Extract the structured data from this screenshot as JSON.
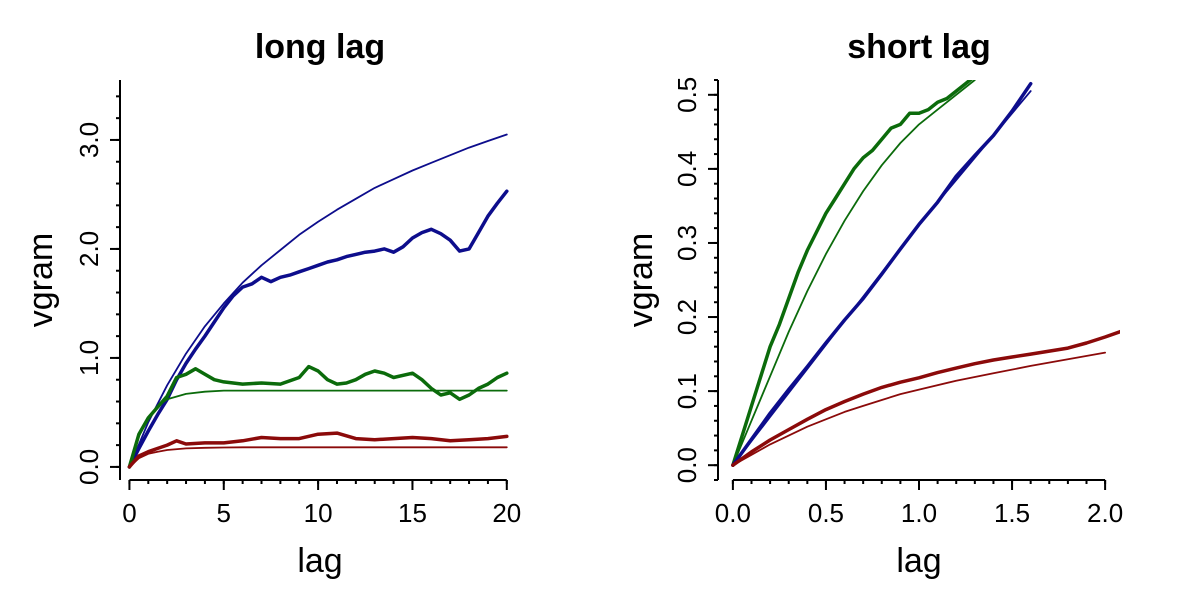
{
  "colors": {
    "blue": "#0d0d8c",
    "green": "#0b6b0b",
    "red": "#8b0a0a"
  },
  "chart_data": [
    {
      "type": "line",
      "title": "long lag",
      "xlabel": "lag",
      "ylabel": "vgram",
      "xlim": [
        -0.5,
        20.7
      ],
      "ylim": [
        -0.12,
        3.55
      ],
      "xticks": [
        0,
        5,
        10,
        15,
        20
      ],
      "yticks": [
        0.0,
        1.0,
        2.0,
        3.0
      ],
      "ytick_labels": [
        "0.0",
        "1.0",
        "2.0",
        "3.0"
      ],
      "series": [
        {
          "color": "blue",
          "style": "empirical",
          "x": [
            0,
            0.5,
            1,
            1.5,
            2,
            2.5,
            3,
            3.5,
            4,
            4.5,
            5,
            5.5,
            6,
            6.5,
            7,
            7.5,
            8,
            8.5,
            9,
            9.5,
            10,
            10.5,
            11,
            11.5,
            12,
            12.5,
            13,
            13.5,
            14,
            14.5,
            15,
            15.5,
            16,
            16.5,
            17,
            17.5,
            18,
            18.5,
            19,
            19.5,
            20
          ],
          "y": [
            0,
            0.17,
            0.33,
            0.48,
            0.62,
            0.8,
            0.95,
            1.08,
            1.2,
            1.33,
            1.46,
            1.57,
            1.65,
            1.68,
            1.74,
            1.7,
            1.74,
            1.76,
            1.79,
            1.82,
            1.85,
            1.88,
            1.9,
            1.93,
            1.95,
            1.97,
            1.98,
            2.0,
            1.97,
            2.02,
            2.1,
            2.15,
            2.18,
            2.14,
            2.08,
            1.98,
            2.0,
            2.15,
            2.3,
            2.42,
            2.53
          ]
        },
        {
          "color": "blue",
          "style": "model",
          "x": [
            0,
            1,
            2,
            3,
            4,
            5,
            6,
            7,
            8,
            9,
            10,
            11,
            12,
            13,
            14,
            15,
            16,
            17,
            18,
            19,
            20
          ],
          "y": [
            0,
            0.41,
            0.75,
            1.04,
            1.29,
            1.5,
            1.69,
            1.85,
            1.99,
            2.13,
            2.25,
            2.36,
            2.46,
            2.56,
            2.64,
            2.72,
            2.79,
            2.86,
            2.93,
            2.99,
            3.05
          ]
        },
        {
          "color": "green",
          "style": "empirical",
          "x": [
            0,
            0.5,
            1,
            1.5,
            2,
            2.5,
            3,
            3.5,
            4,
            4.5,
            5,
            6,
            7,
            8,
            9,
            9.5,
            10,
            10.5,
            11,
            11.5,
            12,
            12.5,
            13,
            13.5,
            14,
            15,
            15.5,
            16,
            16.5,
            17,
            17.5,
            18,
            18.5,
            19,
            19.5,
            20
          ],
          "y": [
            0,
            0.3,
            0.45,
            0.55,
            0.65,
            0.82,
            0.85,
            0.9,
            0.85,
            0.8,
            0.78,
            0.76,
            0.77,
            0.76,
            0.82,
            0.92,
            0.88,
            0.8,
            0.76,
            0.77,
            0.8,
            0.85,
            0.88,
            0.86,
            0.82,
            0.86,
            0.8,
            0.72,
            0.66,
            0.68,
            0.62,
            0.66,
            0.72,
            0.76,
            0.82,
            0.86
          ]
        },
        {
          "color": "green",
          "style": "model",
          "x": [
            0,
            0.5,
            1,
            1.5,
            2,
            3,
            4,
            5,
            6,
            8,
            10,
            12,
            14,
            16,
            18,
            20
          ],
          "y": [
            0,
            0.28,
            0.45,
            0.56,
            0.62,
            0.67,
            0.69,
            0.7,
            0.7,
            0.7,
            0.7,
            0.7,
            0.7,
            0.7,
            0.7,
            0.7
          ]
        },
        {
          "color": "red",
          "style": "empirical",
          "x": [
            0,
            0.5,
            1,
            1.5,
            2,
            2.5,
            3,
            4,
            5,
            6,
            7,
            8,
            9,
            10,
            11,
            12,
            13,
            14,
            15,
            16,
            17,
            18,
            19,
            20
          ],
          "y": [
            0,
            0.1,
            0.14,
            0.17,
            0.2,
            0.24,
            0.21,
            0.22,
            0.22,
            0.24,
            0.27,
            0.26,
            0.26,
            0.3,
            0.31,
            0.26,
            0.25,
            0.26,
            0.27,
            0.26,
            0.24,
            0.25,
            0.26,
            0.28
          ]
        },
        {
          "color": "red",
          "style": "model",
          "x": [
            0,
            0.5,
            1,
            1.5,
            2,
            3,
            4,
            5,
            6,
            8,
            10,
            12,
            14,
            16,
            18,
            20
          ],
          "y": [
            0,
            0.08,
            0.12,
            0.14,
            0.155,
            0.17,
            0.175,
            0.178,
            0.18,
            0.18,
            0.18,
            0.18,
            0.18,
            0.18,
            0.18,
            0.18
          ]
        }
      ]
    },
    {
      "type": "line",
      "title": "short lag",
      "xlabel": "lag",
      "ylabel": "vgram",
      "xlim": [
        -0.08,
        2.08
      ],
      "ylim": [
        -0.02,
        0.52
      ],
      "xticks": [
        0,
        0.5,
        1.0,
        1.5,
        2.0
      ],
      "xtick_labels": [
        "0.0",
        "0.5",
        "1.0",
        "1.5",
        "2.0"
      ],
      "yticks": [
        0.0,
        0.1,
        0.2,
        0.3,
        0.4,
        0.5
      ],
      "ytick_labels": [
        "0.0",
        "0.1",
        "0.2",
        "0.3",
        "0.4",
        "0.5"
      ],
      "series": [
        {
          "color": "green",
          "style": "empirical",
          "x": [
            0,
            0.05,
            0.1,
            0.15,
            0.2,
            0.25,
            0.3,
            0.35,
            0.4,
            0.45,
            0.5,
            0.55,
            0.6,
            0.65,
            0.7,
            0.75,
            0.8,
            0.85,
            0.9,
            0.95,
            1.0,
            1.05,
            1.1,
            1.15,
            1.2,
            1.25,
            1.3
          ],
          "y": [
            0,
            0.04,
            0.08,
            0.12,
            0.16,
            0.19,
            0.225,
            0.26,
            0.29,
            0.315,
            0.34,
            0.36,
            0.38,
            0.4,
            0.415,
            0.425,
            0.44,
            0.455,
            0.46,
            0.475,
            0.475,
            0.48,
            0.49,
            0.495,
            0.505,
            0.515,
            0.525
          ]
        },
        {
          "color": "green",
          "style": "model",
          "x": [
            0,
            0.1,
            0.2,
            0.3,
            0.4,
            0.5,
            0.6,
            0.7,
            0.8,
            0.9,
            1.0,
            1.1,
            1.2,
            1.3
          ],
          "y": [
            0,
            0.06,
            0.12,
            0.18,
            0.235,
            0.285,
            0.33,
            0.37,
            0.405,
            0.435,
            0.46,
            0.48,
            0.5,
            0.52
          ]
        },
        {
          "color": "blue",
          "style": "empirical",
          "x": [
            0,
            0.1,
            0.2,
            0.3,
            0.4,
            0.5,
            0.6,
            0.7,
            0.8,
            0.9,
            1.0,
            1.1,
            1.2,
            1.3,
            1.4,
            1.5,
            1.6
          ],
          "y": [
            0,
            0.035,
            0.07,
            0.102,
            0.133,
            0.165,
            0.196,
            0.225,
            0.258,
            0.292,
            0.325,
            0.355,
            0.39,
            0.418,
            0.445,
            0.478,
            0.515
          ]
        },
        {
          "color": "blue",
          "style": "model",
          "x": [
            0,
            0.2,
            0.4,
            0.6,
            0.8,
            1.0,
            1.2,
            1.4,
            1.6
          ],
          "y": [
            0,
            0.065,
            0.13,
            0.195,
            0.26,
            0.325,
            0.385,
            0.445,
            0.505
          ]
        },
        {
          "color": "red",
          "style": "empirical",
          "x": [
            0,
            0.1,
            0.2,
            0.3,
            0.4,
            0.5,
            0.6,
            0.7,
            0.8,
            0.9,
            1.0,
            1.1,
            1.2,
            1.3,
            1.4,
            1.5,
            1.6,
            1.7,
            1.8,
            1.9,
            2.0,
            2.1
          ],
          "y": [
            0,
            0.018,
            0.034,
            0.048,
            0.062,
            0.075,
            0.086,
            0.096,
            0.105,
            0.112,
            0.118,
            0.125,
            0.131,
            0.137,
            0.142,
            0.146,
            0.15,
            0.154,
            0.158,
            0.165,
            0.173,
            0.182
          ]
        },
        {
          "color": "red",
          "style": "model",
          "x": [
            0,
            0.1,
            0.2,
            0.3,
            0.4,
            0.5,
            0.6,
            0.7,
            0.8,
            0.9,
            1.0,
            1.2,
            1.4,
            1.6,
            1.8,
            2.0
          ],
          "y": [
            0,
            0.014,
            0.028,
            0.04,
            0.052,
            0.062,
            0.072,
            0.08,
            0.088,
            0.096,
            0.102,
            0.114,
            0.124,
            0.134,
            0.143,
            0.152
          ]
        }
      ]
    }
  ]
}
